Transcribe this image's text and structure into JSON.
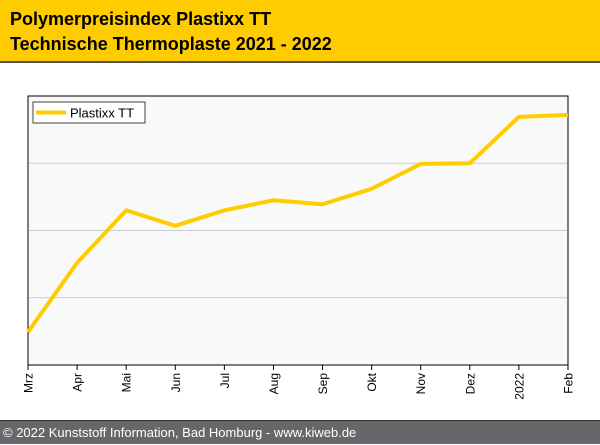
{
  "header": {
    "title_line1": "Polymerpreisindex Plastixx TT",
    "title_line2": "Technische Thermoplaste 2021 - 2022"
  },
  "footer": {
    "text": "© 2022 Kunststoff Information, Bad Homburg - www.kiweb.de"
  },
  "colors": {
    "line": "#ffcc00",
    "header": "#ffcc00",
    "footer": "#67676b",
    "grid": "#cccccc"
  },
  "chart_data": {
    "type": "line",
    "title": "Polymerpreisindex Plastixx TT - Technische Thermoplaste 2021 - 2022",
    "xlabel": "",
    "ylabel": "",
    "categories": [
      "Mrz",
      "Apr",
      "Mai",
      "Jun",
      "Jul",
      "Aug",
      "Sep",
      "Okt",
      "Nov",
      "Dez",
      "2022",
      "Feb"
    ],
    "series": [
      {
        "name": "Plastixx TT",
        "values": [
          0.49,
          1.52,
          2.3,
          2.07,
          2.3,
          2.45,
          2.39,
          2.62,
          2.99,
          3.0,
          3.69,
          3.72
        ]
      }
    ],
    "ylim": [
      0,
      4
    ],
    "y_gridlines": [
      1,
      2,
      3
    ],
    "grid": true,
    "legend": "top-left"
  }
}
